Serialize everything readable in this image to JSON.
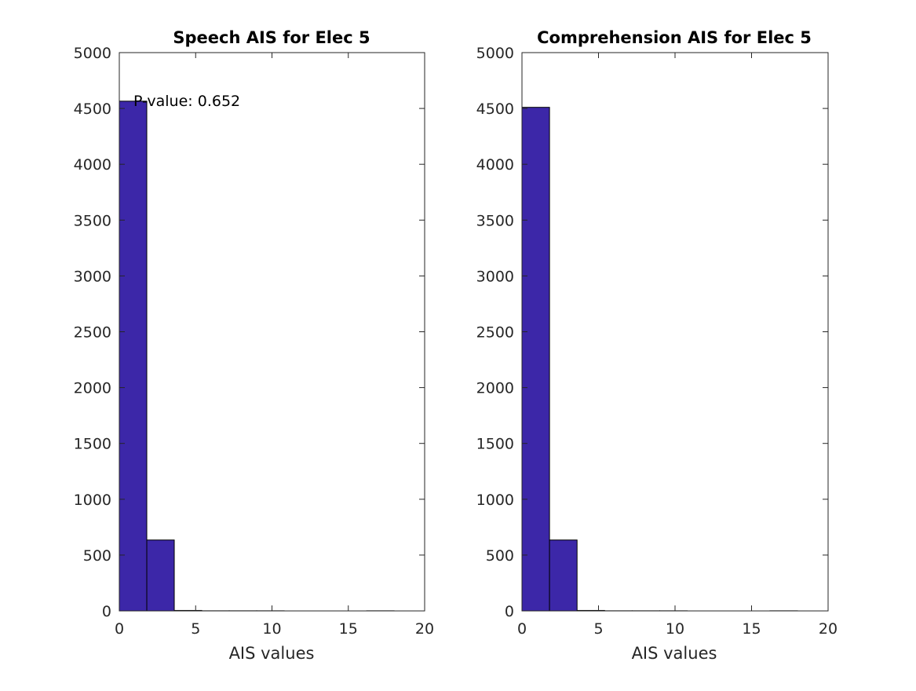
{
  "chart_data": [
    {
      "type": "bar",
      "title": "Speech AIS for Elec 5",
      "xlabel": "AIS values",
      "ylabel": "",
      "xlim": [
        0,
        20
      ],
      "ylim": [
        0,
        5000
      ],
      "xticks": [
        "0",
        "5",
        "10",
        "15",
        "20"
      ],
      "yticks": [
        "0",
        "500",
        "1000",
        "1500",
        "2000",
        "2500",
        "3000",
        "3500",
        "4000",
        "4500",
        "5000"
      ],
      "bin_edges": [
        0,
        1.8,
        3.6,
        5.4,
        7.2,
        9.0,
        10.8,
        12.6,
        14.4,
        16.2,
        18.0
      ],
      "values": [
        4565,
        635,
        4,
        1,
        1,
        1,
        0,
        0,
        0,
        1
      ],
      "bar_color": "#3c27a8",
      "grid": false,
      "annotation": "P-value: 0.652"
    },
    {
      "type": "bar",
      "title": "Comprehension AIS for Elec 5",
      "xlabel": "AIS values",
      "ylabel": "",
      "xlim": [
        0,
        20
      ],
      "ylim": [
        0,
        5000
      ],
      "xticks": [
        "0",
        "5",
        "10",
        "15",
        "20"
      ],
      "yticks": [
        "0",
        "500",
        "1000",
        "1500",
        "2000",
        "2500",
        "3000",
        "3500",
        "4000",
        "4500",
        "5000"
      ],
      "bin_edges": [
        0,
        1.8,
        3.6,
        5.4,
        7.2,
        9.0,
        10.8,
        12.6,
        14.4,
        16.2,
        18.0
      ],
      "values": [
        4510,
        635,
        4,
        1,
        1,
        1,
        0,
        0,
        0,
        1
      ],
      "bar_color": "#3c27a8",
      "grid": false
    }
  ]
}
